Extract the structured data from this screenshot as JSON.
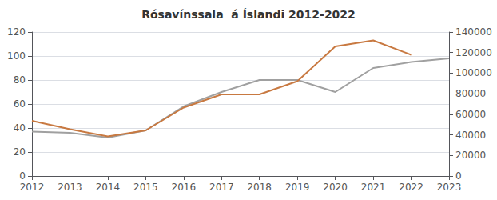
{
  "chart_data": {
    "type": "line",
    "title": "Rósavínssala  á Íslandi 2012-2022",
    "x": [
      2012,
      2013,
      2014,
      2015,
      2016,
      2017,
      2018,
      2019,
      2020,
      2021,
      2022,
      2023
    ],
    "xlim": [
      2012,
      2023
    ],
    "xticks": [
      2012,
      2013,
      2014,
      2015,
      2016,
      2017,
      2018,
      2019,
      2020,
      2021,
      2022,
      2023
    ],
    "series": [
      {
        "color": "#a0a0a0",
        "values": [
          37,
          36,
          32,
          38,
          58,
          70,
          80,
          80,
          70,
          90,
          95,
          98
        ]
      },
      {
        "color": "#c87941",
        "values": [
          46,
          39,
          33,
          38,
          57,
          68,
          68,
          79,
          108,
          113,
          101,
          null
        ]
      }
    ],
    "ylim": [
      0,
      120
    ],
    "yticks": [
      0,
      20,
      40,
      60,
      80,
      100,
      120
    ],
    "y2lim": [
      0,
      140000
    ],
    "y2ticks": [
      0,
      20000,
      40000,
      60000,
      80000,
      100000,
      120000,
      140000
    ],
    "grid": true
  }
}
